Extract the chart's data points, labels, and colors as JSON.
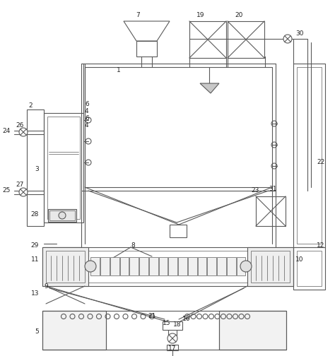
{
  "bg_color": "#ffffff",
  "line_color": "#5a5a5a",
  "line_width": 0.8,
  "thin_line": 0.5,
  "label_color": "#222222",
  "label_fontsize": 6.5,
  "fig_width": 4.74,
  "fig_height": 5.04,
  "dpi": 100
}
